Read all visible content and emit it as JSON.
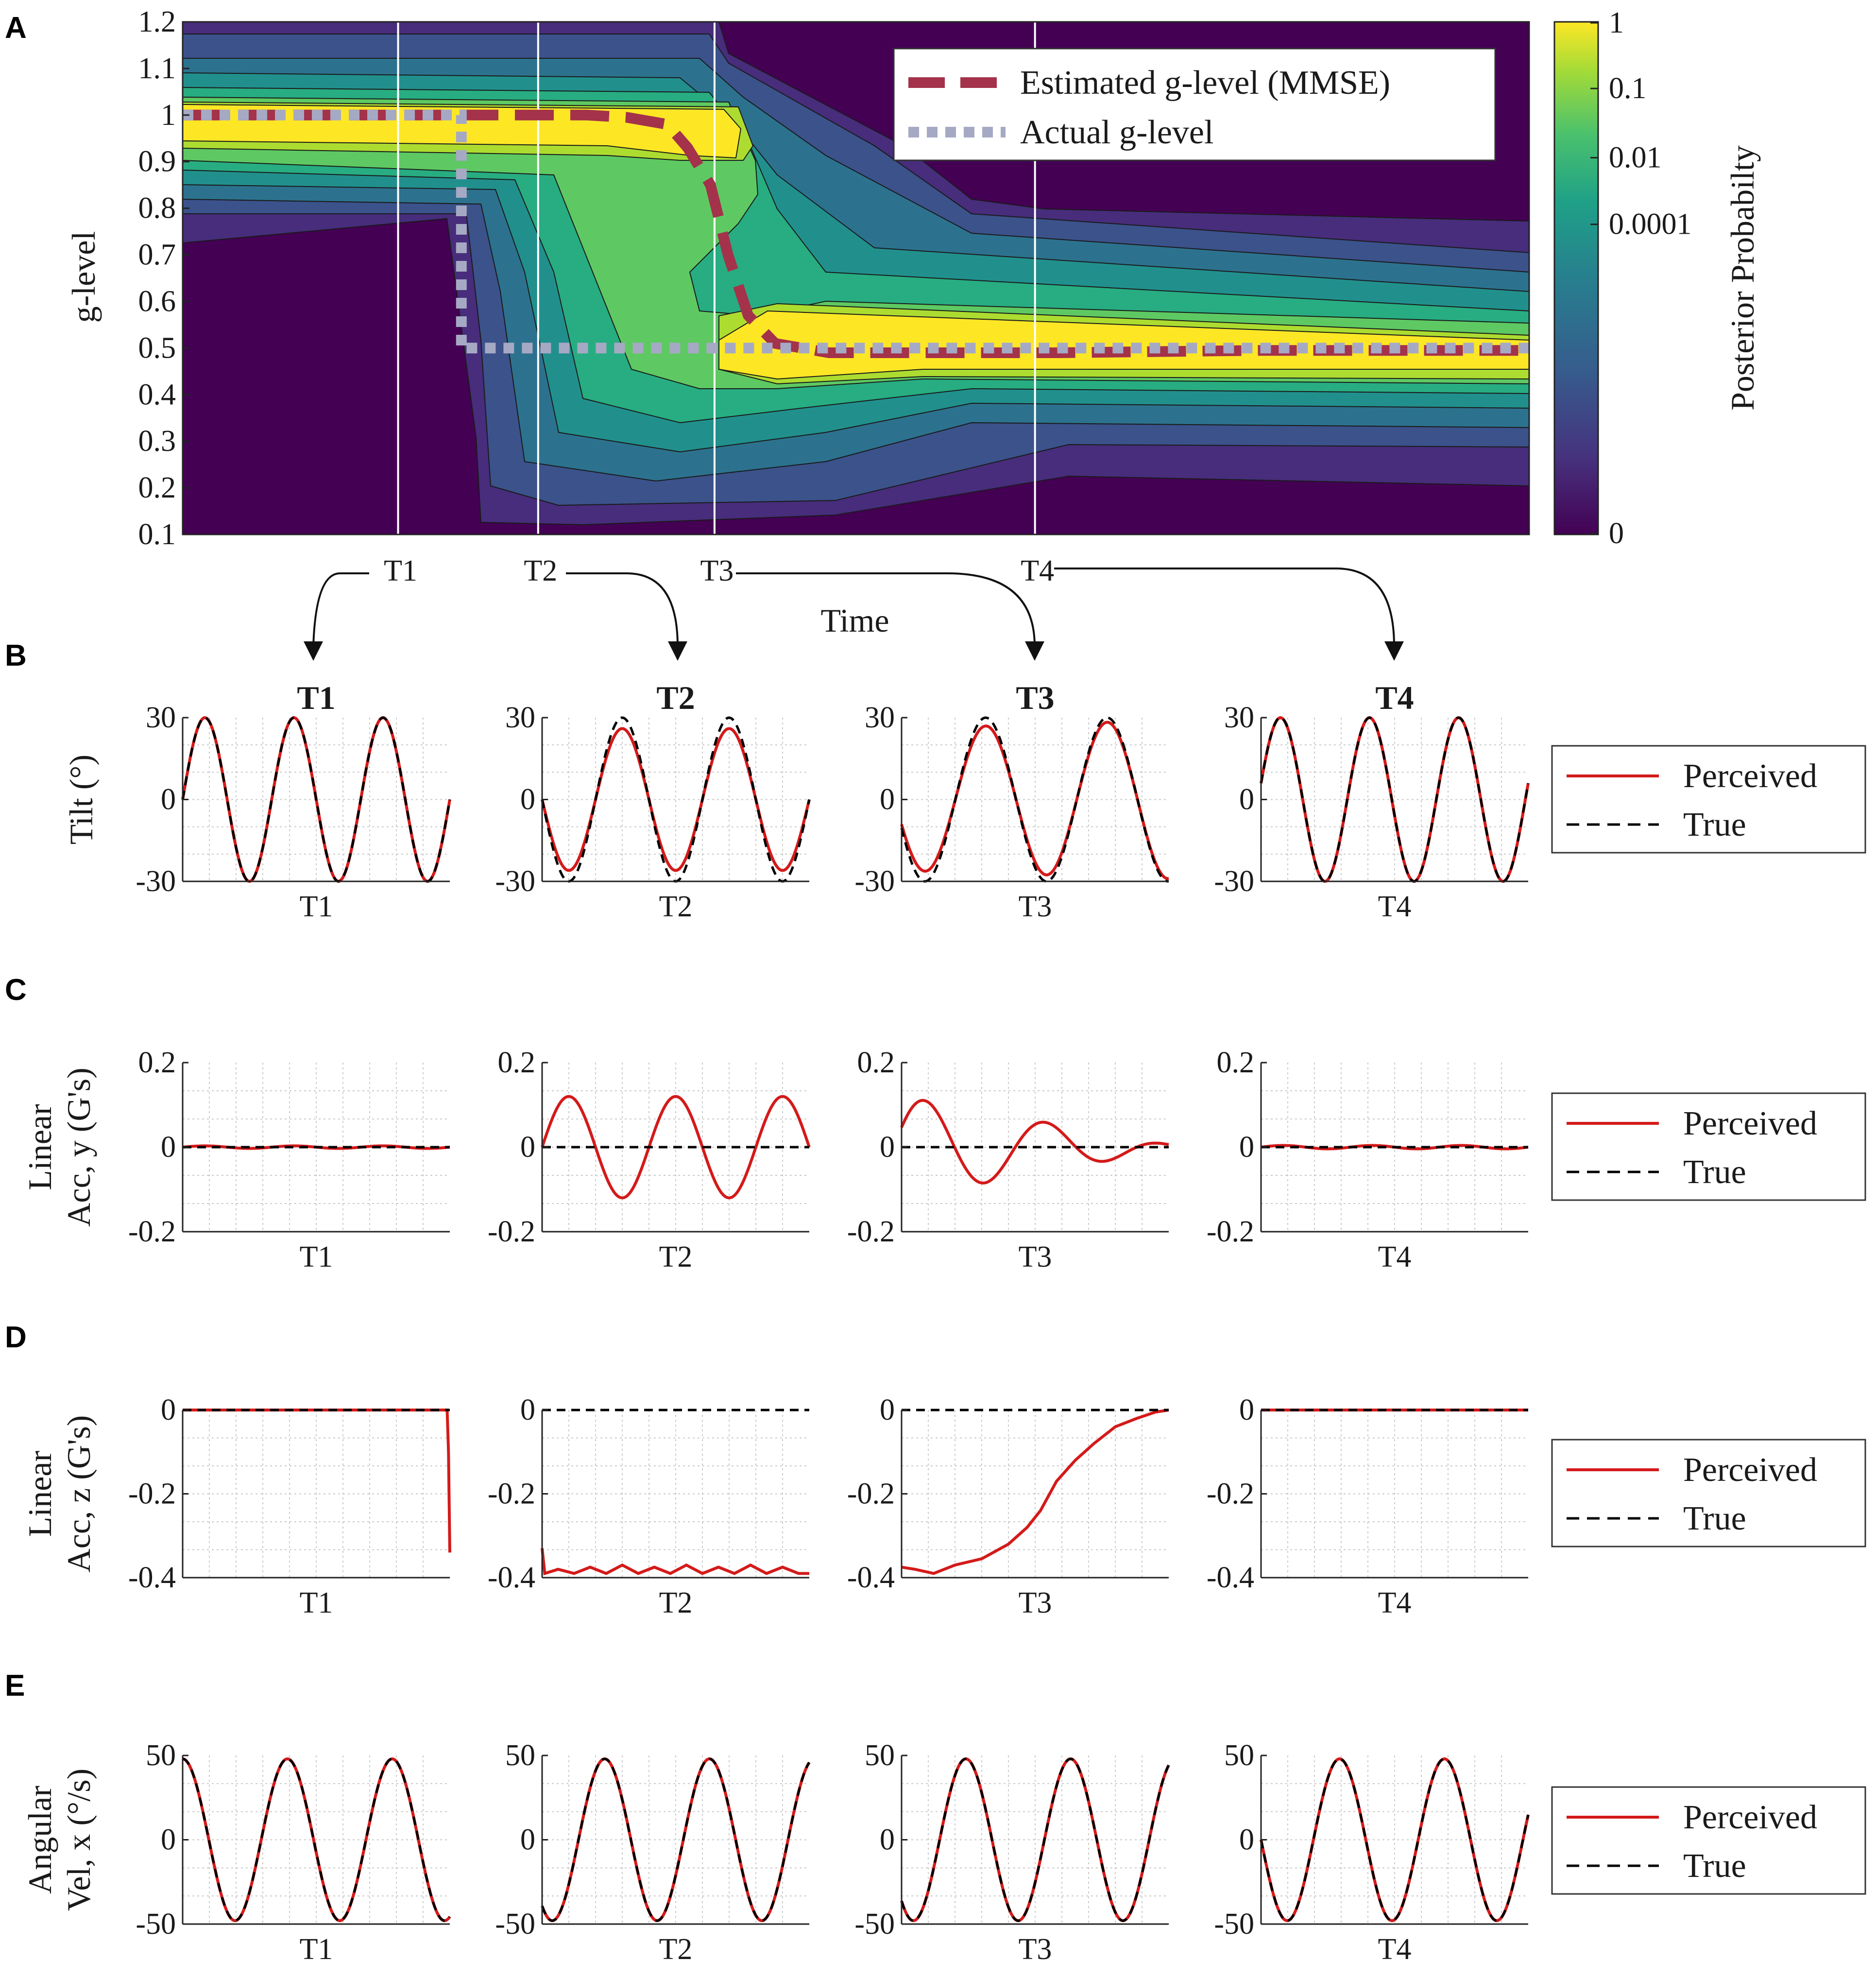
{
  "panel_letters": [
    "A",
    "B",
    "C",
    "D",
    "E"
  ],
  "chart_data": [
    {
      "panel": "A",
      "type": "heatmap",
      "xlabel": "Time",
      "ylabel": "g-level",
      "ylim": [
        0.1,
        1.2
      ],
      "yticks": [
        "0.1",
        "0.2",
        "0.3",
        "0.4",
        "0.5",
        "0.6",
        "0.7",
        "0.8",
        "0.9",
        "1",
        "1.1",
        "1.2"
      ],
      "colorbar": {
        "label": "Posterior Probabilty",
        "ticks": [
          "1",
          "0.1",
          "0.01",
          "0.0001",
          "0"
        ],
        "scale": "log"
      },
      "time_markers": [
        "T1",
        "T2",
        "T3",
        "T4"
      ],
      "time_marker_positions": [
        0.16,
        0.264,
        0.395,
        0.633
      ],
      "legend": {
        "position": "top-right",
        "entries": [
          "Estimated g-level (MMSE)",
          "Actual g-level"
        ]
      },
      "series": [
        {
          "name": "Estimated g-level (MMSE)",
          "color": "#a4324a",
          "style": "dashed",
          "x": [
            0,
            0.2,
            0.3,
            0.33,
            0.36,
            0.375,
            0.392,
            0.405,
            0.42,
            0.44,
            0.48,
            0.55,
            0.65,
            0.8,
            1.0
          ],
          "y": [
            1.0,
            1.0,
            1.0,
            0.995,
            0.98,
            0.93,
            0.85,
            0.7,
            0.57,
            0.51,
            0.49,
            0.49,
            0.49,
            0.495,
            0.495
          ]
        },
        {
          "name": "Actual g-level",
          "color": "#a6a9c4",
          "style": "dotted",
          "x": [
            0,
            0.207,
            0.207,
            1.0
          ],
          "y": [
            1.0,
            1.0,
            0.5,
            0.5
          ]
        }
      ]
    },
    {
      "panel": "B",
      "type": "line",
      "ylabel": "Tilt (°)",
      "ylim": [
        -30,
        30
      ],
      "yticks": [
        "30",
        "0",
        "-30"
      ],
      "legend": {
        "position": "right",
        "entries": [
          "Perceived",
          "True"
        ]
      },
      "subplots": [
        {
          "title": "T1",
          "xlabel": "T1",
          "true": {
            "amp": 30,
            "cycles": 3,
            "phase": 0
          },
          "perceived": {
            "amp": 30,
            "end_amp": 30
          }
        },
        {
          "title": "T2",
          "xlabel": "T2",
          "true": {
            "amp": 30,
            "cycles": 2.5,
            "phase": 3.14159
          },
          "perceived": {
            "amp": 26,
            "end_amp": 26
          }
        },
        {
          "title": "T3",
          "xlabel": "T3",
          "true": {
            "amp": 30,
            "cycles": 2.2,
            "phase": 3.5
          },
          "perceived": {
            "amp": 26,
            "end_amp": 29
          }
        },
        {
          "title": "T4",
          "xlabel": "T4",
          "true": {
            "amp": 30,
            "cycles": 3,
            "phase": 0.2
          },
          "perceived": {
            "amp": 30,
            "end_amp": 30
          }
        }
      ]
    },
    {
      "panel": "C",
      "type": "line",
      "ylabel": [
        "Linear",
        "Acc, y (G's)"
      ],
      "ylim": [
        -0.2,
        0.2
      ],
      "yticks": [
        "0.2",
        "0",
        "-0.2"
      ],
      "legend": {
        "position": "right",
        "entries": [
          "Perceived",
          "True"
        ]
      },
      "subplots": [
        {
          "xlabel": "T1",
          "true": {
            "amp": 0
          },
          "perceived": {
            "amp": 0.003,
            "end_amp": 0.003,
            "cycles": 3,
            "phase": 0
          }
        },
        {
          "xlabel": "T2",
          "true": {
            "amp": 0
          },
          "perceived": {
            "amp": 0.12,
            "end_amp": 0.12,
            "cycles": 2.5,
            "phase": 0
          }
        },
        {
          "xlabel": "T3",
          "true": {
            "amp": 0
          },
          "perceived": {
            "amp": 0.12,
            "end_amp": 0.006,
            "cycles": 2.2,
            "phase": 0.4
          }
        },
        {
          "xlabel": "T4",
          "true": {
            "amp": 0
          },
          "perceived": {
            "amp": 0.004,
            "end_amp": 0.004,
            "cycles": 3,
            "phase": 0
          }
        }
      ]
    },
    {
      "panel": "D",
      "type": "line",
      "ylabel": [
        "Linear",
        "Acc, z (G's)"
      ],
      "ylim": [
        -0.4,
        0
      ],
      "yticks": [
        "0",
        "-0.2",
        "-0.4"
      ],
      "legend": {
        "position": "right",
        "entries": [
          "Perceived",
          "True"
        ]
      },
      "subplots": [
        {
          "xlabel": "T1",
          "true": 0,
          "perceived": {
            "x": [
              0,
              0.99,
              0.995,
              1.0
            ],
            "y": [
              0,
              0,
              -0.1,
              -0.34
            ]
          }
        },
        {
          "xlabel": "T2",
          "true": 0,
          "perceived": {
            "x": [
              0,
              0.01,
              0.06,
              0.12,
              0.18,
              0.24,
              0.3,
              0.36,
              0.42,
              0.48,
              0.54,
              0.6,
              0.66,
              0.72,
              0.78,
              0.84,
              0.9,
              0.96,
              1.0
            ],
            "y": [
              -0.33,
              -0.39,
              -0.38,
              -0.39,
              -0.375,
              -0.39,
              -0.37,
              -0.39,
              -0.375,
              -0.39,
              -0.37,
              -0.39,
              -0.375,
              -0.39,
              -0.37,
              -0.39,
              -0.375,
              -0.39,
              -0.39
            ]
          }
        },
        {
          "xlabel": "T3",
          "true": 0,
          "perceived": {
            "x": [
              0,
              0.05,
              0.12,
              0.2,
              0.3,
              0.4,
              0.47,
              0.52,
              0.58,
              0.65,
              0.72,
              0.8,
              0.88,
              0.95,
              1.0
            ],
            "y": [
              -0.375,
              -0.38,
              -0.39,
              -0.37,
              -0.355,
              -0.32,
              -0.28,
              -0.24,
              -0.17,
              -0.12,
              -0.08,
              -0.04,
              -0.02,
              -0.005,
              0
            ]
          }
        },
        {
          "xlabel": "T4",
          "true": 0,
          "perceived": {
            "x": [
              0,
              0.2,
              0.4,
              0.6,
              0.8,
              1.0
            ],
            "y": [
              0.008,
              0.005,
              0.008,
              0.004,
              0.007,
              0.005
            ]
          }
        }
      ]
    },
    {
      "panel": "E",
      "type": "line",
      "ylabel": [
        "Angular",
        "Vel, x (°/s)"
      ],
      "ylim": [
        -50,
        50
      ],
      "yticks": [
        "50",
        "0",
        "-50"
      ],
      "legend": {
        "position": "right",
        "entries": [
          "Perceived",
          "True"
        ]
      },
      "subplots": [
        {
          "xlabel": "T1",
          "true": {
            "amp": 48,
            "cycles": 2.55,
            "phase": 1.5708
          },
          "perceived": {
            "amp": 48,
            "end_amp": 48
          }
        },
        {
          "xlabel": "T2",
          "true": {
            "amp": 48,
            "cycles": 2.55,
            "phase": 4.1
          },
          "perceived": {
            "amp": 48,
            "end_amp": 48
          }
        },
        {
          "xlabel": "T3",
          "true": {
            "amp": 48,
            "cycles": 2.55,
            "phase": 4.0
          },
          "perceived": {
            "amp": 48,
            "end_amp": 48
          }
        },
        {
          "xlabel": "T4",
          "true": {
            "amp": 48,
            "cycles": 2.55,
            "phase": 3.14159
          },
          "perceived": {
            "amp": 48,
            "end_amp": 48
          }
        }
      ]
    }
  ],
  "colors": {
    "perceived": "#d41a1a",
    "true": "#000000",
    "marker_line": "#ffffff"
  }
}
